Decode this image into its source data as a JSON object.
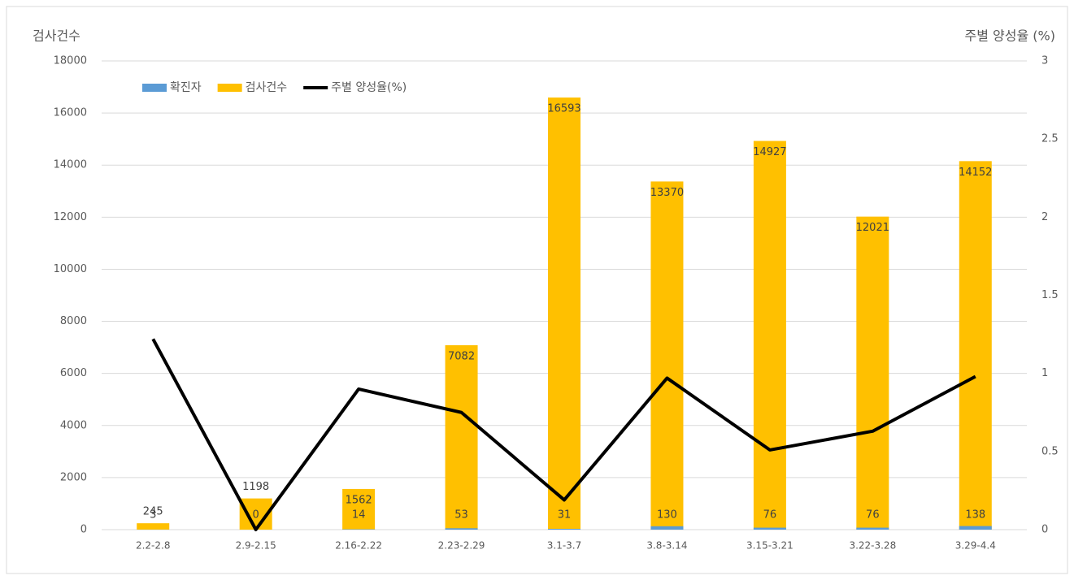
{
  "chart_data": {
    "type": "bar",
    "y_label": "검사건수",
    "y2_label": "주별 양성율 (%)",
    "categories": [
      "2.2-2.8",
      "2.9-2.15",
      "2.16-2.22",
      "2.23-2.29",
      "3.1-3.7",
      "3.8-3.14",
      "3.15-3.21",
      "3.22-3.28",
      "3.29-4.4"
    ],
    "series": [
      {
        "name": "확진자",
        "color": "#5b9bd5",
        "values": [
          3,
          0,
          14,
          53,
          31,
          130,
          76,
          76,
          138
        ]
      },
      {
        "name": "검사건수",
        "color": "#ffc000",
        "values": [
          245,
          1198,
          1562,
          7082,
          16593,
          13370,
          14927,
          12021,
          14152
        ]
      },
      {
        "name": "주별 양성율(%)",
        "color": "#000000",
        "axis": "y2",
        "values": [
          1.22,
          0,
          0.9,
          0.75,
          0.19,
          0.97,
          0.51,
          0.63,
          0.98
        ]
      }
    ],
    "ylim": [
      0,
      18000
    ],
    "yticks": [
      0,
      2000,
      4000,
      6000,
      8000,
      10000,
      12000,
      14000,
      16000,
      18000
    ],
    "y2lim": [
      0,
      3
    ],
    "y2ticks": [
      0,
      0.5,
      1,
      1.5,
      2,
      2.5,
      3
    ],
    "grid": true,
    "legend": "top-left"
  }
}
